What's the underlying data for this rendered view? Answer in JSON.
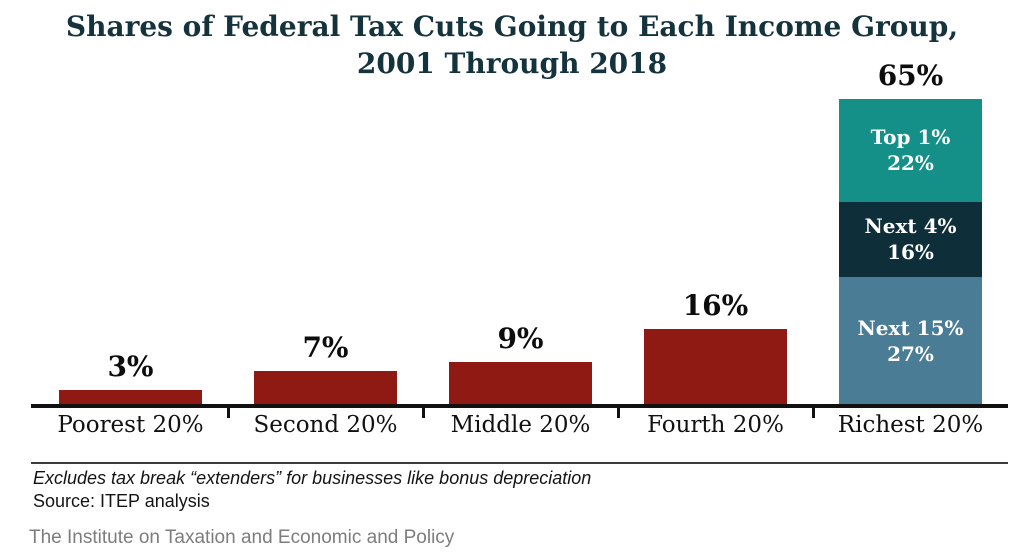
{
  "title": {
    "lines": [
      "Shares of Federal Tax Cuts Going to Each Income Group,",
      "2001 Through 2018"
    ]
  },
  "chart_data": {
    "type": "bar",
    "title": "Shares of Federal Tax Cuts Going to Each Income Group, 2001 Through 2018",
    "categories": [
      "Poorest 20%",
      "Second 20%",
      "Middle 20%",
      "Fourth 20%",
      "Richest 20%"
    ],
    "values": [
      3,
      7,
      9,
      16,
      65
    ],
    "value_labels": [
      "3%",
      "7%",
      "9%",
      "16%",
      "65%"
    ],
    "bar_color": "#8e1a13",
    "axis_color": "#111111",
    "stacked_breakdown": {
      "category": "Richest 20%",
      "segments": [
        {
          "name": "Top 1%",
          "value": 22,
          "value_label": "22%",
          "color": "#159089"
        },
        {
          "name": "Next 4%",
          "value": 16,
          "value_label": "16%",
          "color": "#0e2f3a"
        },
        {
          "name": "Next 15%",
          "value": 27,
          "value_label": "27%",
          "color": "#4a7c96"
        }
      ]
    },
    "ylim": [
      0,
      69
    ],
    "grid": false,
    "legend": false,
    "xlabel": "",
    "ylabel": ""
  },
  "footer": {
    "note": "Excludes tax break “extenders” for businesses like bonus depreciation",
    "source": "Source: ITEP analysis",
    "attribution": "The Institute on Taxation and Economic and Policy"
  }
}
